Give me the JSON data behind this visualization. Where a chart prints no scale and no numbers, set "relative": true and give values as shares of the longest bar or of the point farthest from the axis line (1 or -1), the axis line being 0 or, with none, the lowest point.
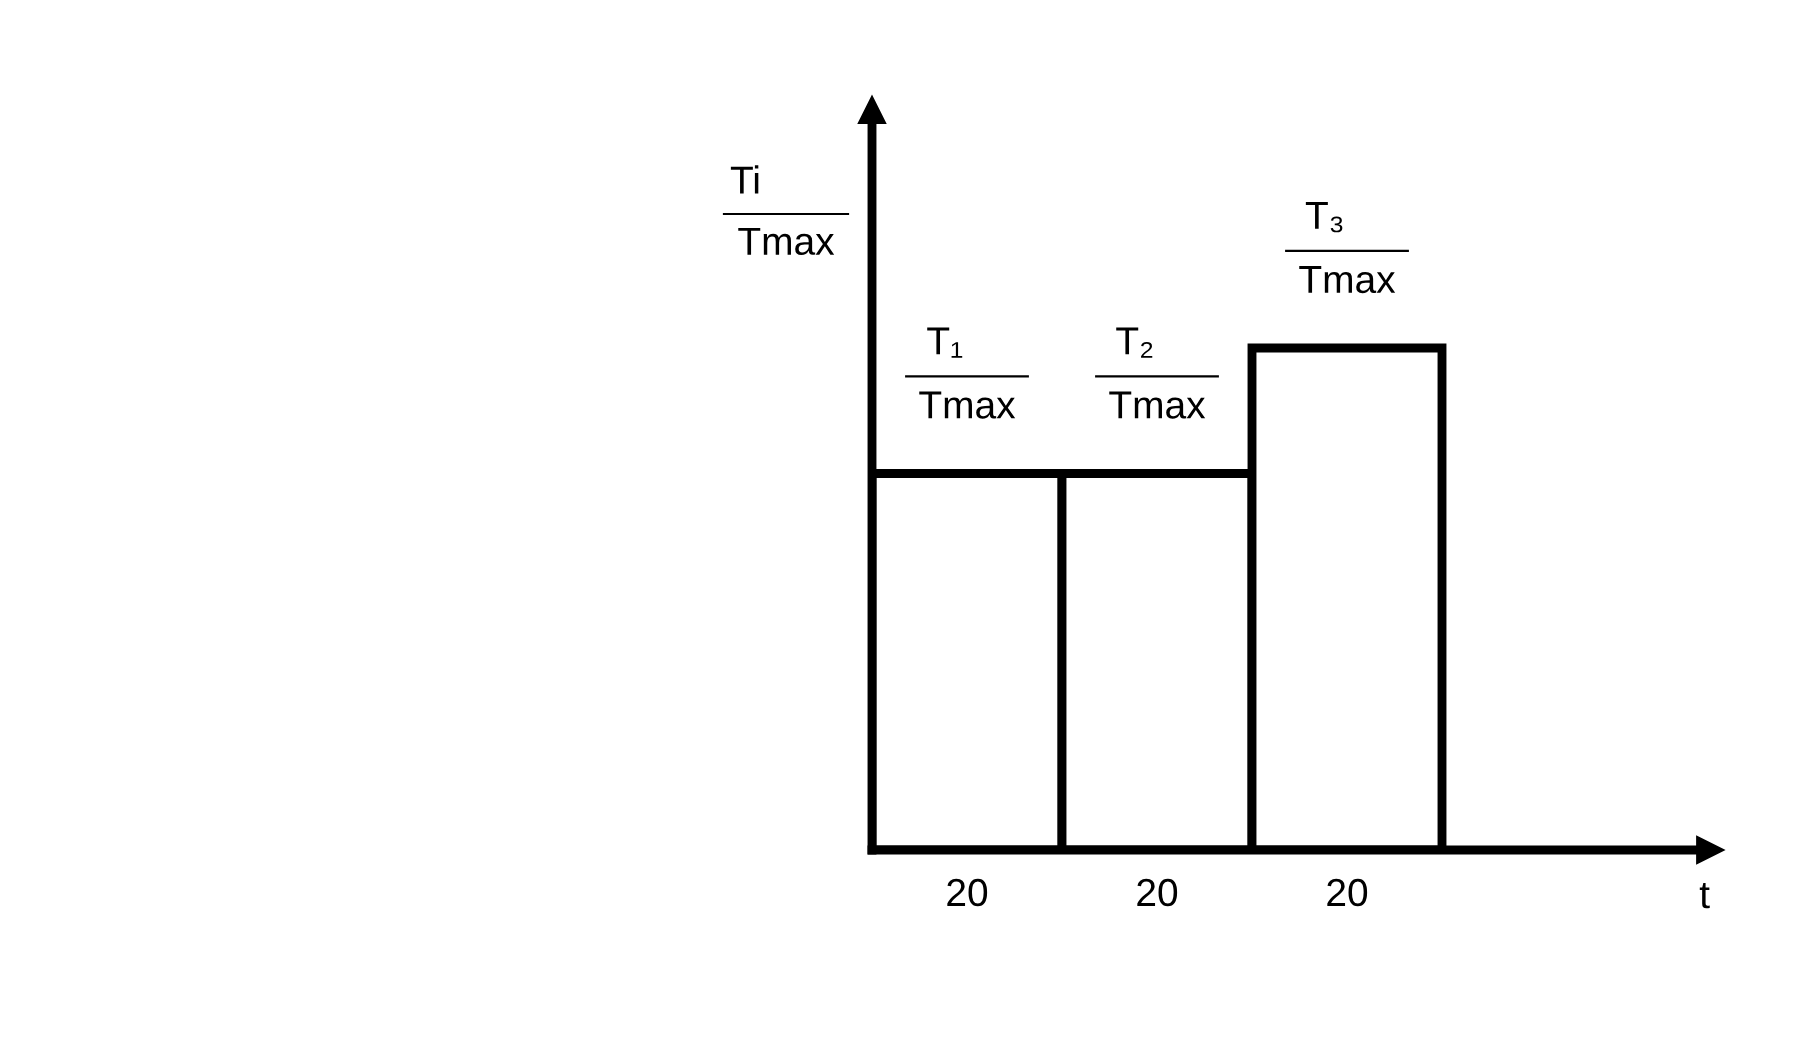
{
  "chart_data": {
    "type": "bar",
    "relative": true,
    "categories": [
      "20",
      "20",
      "20"
    ],
    "values": [
      0.75,
      0.75,
      1
    ],
    "color": "#ffffff",
    "ylabel": "Ti\nTmax",
    "annotations": [
      "T₁\nTmax",
      "T₂\nTmax",
      "T₃\nTmax",
      "t"
    ],
    "grid": false,
    "tick_labels": "x"
  }
}
